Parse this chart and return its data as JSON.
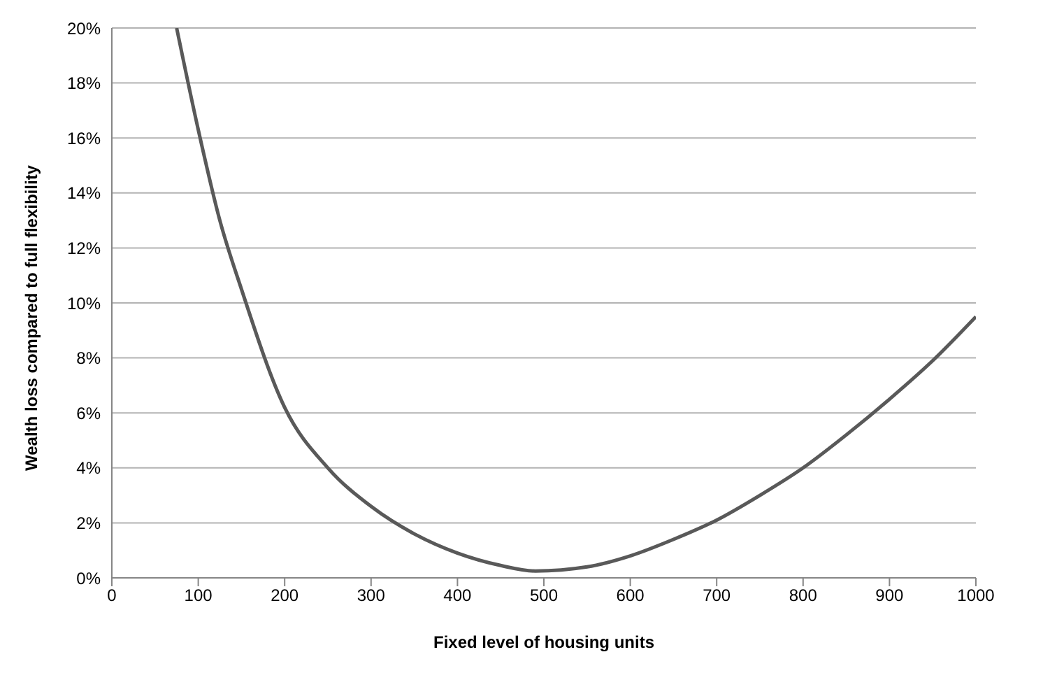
{
  "chart_data": {
    "type": "line",
    "xlabel": "Fixed level of housing units",
    "ylabel": "Wealth loss compared to full flexibility",
    "x": [
      75,
      100,
      125,
      150,
      200,
      250,
      300,
      350,
      400,
      450,
      490,
      550,
      600,
      650,
      700,
      750,
      800,
      850,
      900,
      950,
      1000
    ],
    "series": [
      {
        "color": "#595959",
        "values": [
          20,
          16.3,
          13,
          10.5,
          6.2,
          4.0,
          2.6,
          1.6,
          0.9,
          0.45,
          0.25,
          0.4,
          0.8,
          1.4,
          2.1,
          3.0,
          4.0,
          5.2,
          6.5,
          7.9,
          9.5
        ]
      }
    ],
    "xlim": [
      0,
      1000
    ],
    "xticks": [
      0,
      100,
      200,
      300,
      400,
      500,
      600,
      700,
      800,
      900,
      1000
    ],
    "ylim": [
      0,
      20
    ],
    "yticks": [
      {
        "value": 0,
        "label": "0%"
      },
      {
        "value": 2,
        "label": "2%"
      },
      {
        "value": 4,
        "label": "4%"
      },
      {
        "value": 6,
        "label": "6%"
      },
      {
        "value": 8,
        "label": "8%"
      },
      {
        "value": 10,
        "label": "10%"
      },
      {
        "value": 12,
        "label": "12%"
      },
      {
        "value": 14,
        "label": "14%"
      },
      {
        "value": 16,
        "label": "16%"
      },
      {
        "value": 18,
        "label": "18%"
      },
      {
        "value": 20,
        "label": "20%"
      }
    ],
    "grid": "y",
    "marker": "none",
    "line_style": "solid"
  }
}
